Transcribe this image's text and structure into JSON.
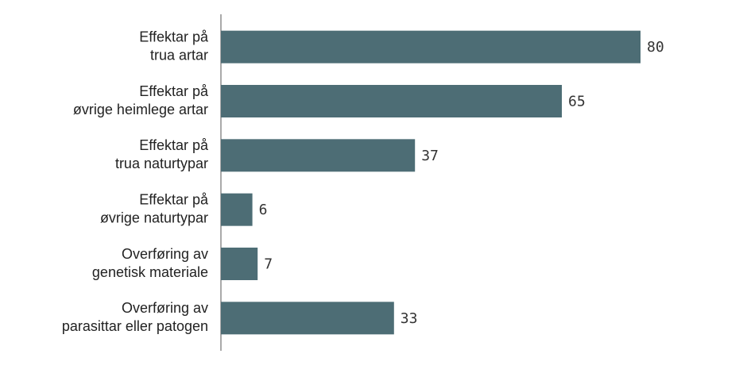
{
  "chart_data": {
    "type": "bar",
    "orientation": "horizontal",
    "categories": [
      [
        "Effektar på",
        "trua artar"
      ],
      [
        "Effektar på",
        "øvrige heimlege artar"
      ],
      [
        "Effektar på",
        "trua naturtypar"
      ],
      [
        "Effektar på",
        "øvrige naturtypar"
      ],
      [
        "Overføring av",
        "genetisk materiale"
      ],
      [
        "Overføring av",
        "parasittar eller patogen"
      ]
    ],
    "values": [
      80,
      65,
      37,
      6,
      7,
      33
    ],
    "color": "#4d6d75"
  }
}
